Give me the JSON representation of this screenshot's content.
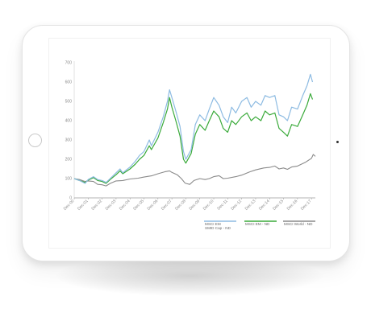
{
  "chart_data": {
    "type": "line",
    "title": "",
    "xlabel": "",
    "ylabel": "",
    "ylim": [
      0,
      700
    ],
    "yticks": [
      "0",
      "100",
      "200",
      "300",
      "400",
      "500",
      "600",
      "700"
    ],
    "xticks": [
      "Dec-00",
      "Dec-01",
      "Dec-02",
      "Dec-03",
      "Dec-04",
      "Dec-05",
      "Dec-06",
      "Dec-07",
      "Dec-08",
      "Dec-09",
      "Dec-10",
      "Dec-11",
      "Dec-12",
      "Dec-13",
      "Dec-14",
      "Dec-15",
      "Dec-16",
      "Dec-17"
    ],
    "grid": false,
    "legend_position": "bottom-right",
    "series": [
      {
        "name": "MSCI EM SMID Cap - ND",
        "color": "#8dbbe2",
        "points": [
          [
            2000.92,
            100
          ],
          [
            2001.3,
            90
          ],
          [
            2001.7,
            75
          ],
          [
            2001.92,
            95
          ],
          [
            2002.3,
            110
          ],
          [
            2002.6,
            95
          ],
          [
            2002.92,
            90
          ],
          [
            2003.2,
            80
          ],
          [
            2003.5,
            100
          ],
          [
            2003.92,
            130
          ],
          [
            2004.2,
            150
          ],
          [
            2004.4,
            130
          ],
          [
            2004.92,
            160
          ],
          [
            2005.3,
            190
          ],
          [
            2005.6,
            220
          ],
          [
            2005.92,
            240
          ],
          [
            2006.3,
            300
          ],
          [
            2006.45,
            270
          ],
          [
            2006.92,
            340
          ],
          [
            2007.3,
            420
          ],
          [
            2007.6,
            500
          ],
          [
            2007.75,
            560
          ],
          [
            2007.92,
            520
          ],
          [
            2008.2,
            450
          ],
          [
            2008.5,
            370
          ],
          [
            2008.75,
            240
          ],
          [
            2008.92,
            200
          ],
          [
            2009.3,
            250
          ],
          [
            2009.6,
            380
          ],
          [
            2009.92,
            430
          ],
          [
            2010.3,
            400
          ],
          [
            2010.6,
            460
          ],
          [
            2010.92,
            520
          ],
          [
            2011.3,
            480
          ],
          [
            2011.6,
            420
          ],
          [
            2011.92,
            390
          ],
          [
            2012.2,
            470
          ],
          [
            2012.5,
            440
          ],
          [
            2012.92,
            500
          ],
          [
            2013.3,
            520
          ],
          [
            2013.6,
            470
          ],
          [
            2013.92,
            500
          ],
          [
            2014.3,
            480
          ],
          [
            2014.6,
            530
          ],
          [
            2014.92,
            520
          ],
          [
            2015.3,
            530
          ],
          [
            2015.6,
            430
          ],
          [
            2015.92,
            420
          ],
          [
            2016.2,
            400
          ],
          [
            2016.5,
            470
          ],
          [
            2016.92,
            460
          ],
          [
            2017.3,
            530
          ],
          [
            2017.6,
            580
          ],
          [
            2017.85,
            640
          ],
          [
            2018.0,
            600
          ]
        ]
      },
      {
        "name": "MSCI EM - ND",
        "color": "#3aaa3a",
        "points": [
          [
            2000.92,
            100
          ],
          [
            2001.3,
            90
          ],
          [
            2001.7,
            80
          ],
          [
            2001.92,
            92
          ],
          [
            2002.3,
            105
          ],
          [
            2002.6,
            90
          ],
          [
            2002.92,
            85
          ],
          [
            2003.2,
            75
          ],
          [
            2003.5,
            95
          ],
          [
            2003.92,
            120
          ],
          [
            2004.2,
            140
          ],
          [
            2004.4,
            125
          ],
          [
            2004.92,
            150
          ],
          [
            2005.3,
            175
          ],
          [
            2005.6,
            200
          ],
          [
            2005.92,
            220
          ],
          [
            2006.3,
            270
          ],
          [
            2006.45,
            250
          ],
          [
            2006.92,
            310
          ],
          [
            2007.3,
            390
          ],
          [
            2007.6,
            460
          ],
          [
            2007.75,
            520
          ],
          [
            2007.92,
            470
          ],
          [
            2008.2,
            400
          ],
          [
            2008.5,
            320
          ],
          [
            2008.75,
            200
          ],
          [
            2008.92,
            180
          ],
          [
            2009.3,
            230
          ],
          [
            2009.6,
            330
          ],
          [
            2009.92,
            380
          ],
          [
            2010.3,
            350
          ],
          [
            2010.6,
            400
          ],
          [
            2010.92,
            450
          ],
          [
            2011.3,
            420
          ],
          [
            2011.6,
            360
          ],
          [
            2011.92,
            340
          ],
          [
            2012.2,
            400
          ],
          [
            2012.5,
            380
          ],
          [
            2012.92,
            420
          ],
          [
            2013.3,
            440
          ],
          [
            2013.6,
            400
          ],
          [
            2013.92,
            420
          ],
          [
            2014.3,
            400
          ],
          [
            2014.6,
            450
          ],
          [
            2014.92,
            430
          ],
          [
            2015.3,
            440
          ],
          [
            2015.6,
            360
          ],
          [
            2015.92,
            340
          ],
          [
            2016.2,
            320
          ],
          [
            2016.5,
            380
          ],
          [
            2016.92,
            370
          ],
          [
            2017.3,
            430
          ],
          [
            2017.6,
            480
          ],
          [
            2017.85,
            540
          ],
          [
            2018.0,
            510
          ]
        ]
      },
      {
        "name": "MSCI World - ND",
        "color": "#8a8a8a",
        "points": [
          [
            2000.92,
            100
          ],
          [
            2001.3,
            95
          ],
          [
            2001.7,
            85
          ],
          [
            2001.92,
            88
          ],
          [
            2002.3,
            85
          ],
          [
            2002.6,
            70
          ],
          [
            2002.92,
            68
          ],
          [
            2003.2,
            62
          ],
          [
            2003.5,
            75
          ],
          [
            2003.92,
            88
          ],
          [
            2004.4,
            90
          ],
          [
            2004.92,
            98
          ],
          [
            2005.5,
            102
          ],
          [
            2005.92,
            108
          ],
          [
            2006.5,
            115
          ],
          [
            2006.92,
            125
          ],
          [
            2007.4,
            135
          ],
          [
            2007.75,
            140
          ],
          [
            2007.92,
            132
          ],
          [
            2008.3,
            120
          ],
          [
            2008.6,
            100
          ],
          [
            2008.85,
            78
          ],
          [
            2008.92,
            75
          ],
          [
            2009.2,
            70
          ],
          [
            2009.5,
            90
          ],
          [
            2009.92,
            100
          ],
          [
            2010.3,
            95
          ],
          [
            2010.6,
            100
          ],
          [
            2010.92,
            110
          ],
          [
            2011.3,
            115
          ],
          [
            2011.6,
            100
          ],
          [
            2011.92,
            102
          ],
          [
            2012.5,
            110
          ],
          [
            2012.92,
            118
          ],
          [
            2013.5,
            135
          ],
          [
            2013.92,
            145
          ],
          [
            2014.5,
            155
          ],
          [
            2014.92,
            158
          ],
          [
            2015.3,
            165
          ],
          [
            2015.6,
            150
          ],
          [
            2015.92,
            155
          ],
          [
            2016.2,
            148
          ],
          [
            2016.5,
            160
          ],
          [
            2016.92,
            165
          ],
          [
            2017.5,
            185
          ],
          [
            2017.92,
            205
          ],
          [
            2018.05,
            225
          ],
          [
            2018.2,
            215
          ]
        ]
      }
    ],
    "legend": [
      {
        "label": "MSCI EM",
        "color": "#8dbbe2"
      },
      {
        "label": "SMID Cap - ND",
        "color": "#8dbbe2"
      },
      {
        "label": "MSCI EM - ND",
        "color": "#3aaa3a"
      },
      {
        "label": "MSCI World - ND",
        "color": "#8a8a8a"
      }
    ]
  }
}
